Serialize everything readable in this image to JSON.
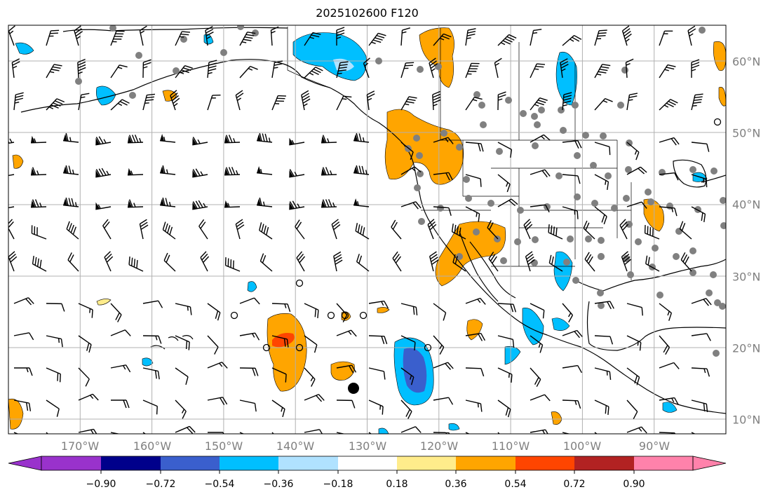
{
  "title": "2025102600 F120",
  "map": {
    "projection": "PlateCarree",
    "lon_range": [
      -180,
      -80
    ],
    "lat_range": [
      8,
      65
    ],
    "gridlines": true,
    "coastlines": true,
    "state_borders": true,
    "fill_variable_range": [
      -0.9,
      0.9
    ],
    "lon_labels": [
      "170°W",
      "160°W",
      "150°W",
      "140°W",
      "130°W",
      "120°W",
      "110°W",
      "100°W",
      "90°W"
    ],
    "lat_labels": [
      "60°N",
      "50°N",
      "40°N",
      "30°N",
      "20°N",
      "10°N"
    ]
  },
  "colorbar": {
    "colors": [
      "#9932cc",
      "#00008b",
      "#3a5fcd",
      "#00bfff",
      "#b0e2ff",
      "#ffffff",
      "#ffec8b",
      "#ffa500",
      "#ff4500",
      "#b22222",
      "#ff82ab"
    ],
    "tick_labels": [
      "−0.90",
      "−0.72",
      "−0.54",
      "−0.36",
      "−0.18",
      "0.18",
      "0.36",
      "0.54",
      "0.72",
      "0.90"
    ],
    "extend": "both"
  },
  "legend": {
    "station_marker_color": "#808080",
    "wind_barb_color": "#000000"
  }
}
